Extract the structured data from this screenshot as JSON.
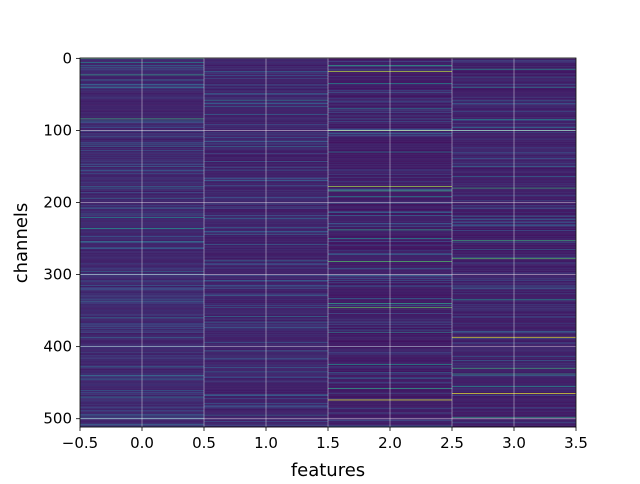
{
  "chart_data": {
    "type": "heatmap",
    "title": "",
    "xlabel": "features",
    "ylabel": "channels",
    "xlim": [
      -0.5,
      3.5
    ],
    "ylim": [
      511.5,
      -0.5
    ],
    "y_inverted": true,
    "grid": true,
    "colormap": "viridis",
    "n_rows": 512,
    "n_cols": 4,
    "x_ticks": [
      -0.5,
      0.0,
      0.5,
      1.0,
      1.5,
      2.0,
      2.5,
      3.0,
      3.5
    ],
    "x_tick_labels": [
      "−0.5",
      "0.0",
      "0.5",
      "1.0",
      "1.5",
      "2.0",
      "2.5",
      "3.0",
      "3.5"
    ],
    "y_ticks": [
      0,
      100,
      200,
      300,
      400,
      500
    ],
    "y_tick_labels": [
      "0",
      "100",
      "200",
      "300",
      "400",
      "500"
    ],
    "columns": [
      {
        "feature": 0,
        "baseline": 0.08,
        "highlights": [
          {
            "channel": 0,
            "value": 0.65
          },
          {
            "channel": 6,
            "value": 0.45
          },
          {
            "channel": 23,
            "value": 0.55
          },
          {
            "channel": 40,
            "value": 0.35
          },
          {
            "channel": 84,
            "value": 0.6
          },
          {
            "channel": 87,
            "value": 0.4
          },
          {
            "channel": 150,
            "value": 0.3
          },
          {
            "channel": 221,
            "value": 0.45
          },
          {
            "channel": 236,
            "value": 0.5
          },
          {
            "channel": 300,
            "value": 0.3
          },
          {
            "channel": 360,
            "value": 0.35
          },
          {
            "channel": 400,
            "value": 0.3
          },
          {
            "channel": 440,
            "value": 0.35
          },
          {
            "channel": 470,
            "value": 0.35
          },
          {
            "channel": 500,
            "value": 0.3
          }
        ]
      },
      {
        "feature": 1,
        "baseline": 0.07,
        "highlights": [
          {
            "channel": 58,
            "value": 0.4
          },
          {
            "channel": 170,
            "value": 0.25
          },
          {
            "channel": 235,
            "value": 0.3
          },
          {
            "channel": 285,
            "value": 0.25
          },
          {
            "channel": 358,
            "value": 0.35
          },
          {
            "channel": 495,
            "value": 0.35
          }
        ]
      },
      {
        "feature": 2,
        "baseline": 0.05,
        "highlights": [
          {
            "channel": 10,
            "value": 0.55
          },
          {
            "channel": 18,
            "value": 0.9
          },
          {
            "channel": 35,
            "value": 0.45
          },
          {
            "channel": 70,
            "value": 0.4
          },
          {
            "channel": 100,
            "value": 0.75
          },
          {
            "channel": 130,
            "value": 0.4
          },
          {
            "channel": 178,
            "value": 0.85
          },
          {
            "channel": 184,
            "value": 0.6
          },
          {
            "channel": 192,
            "value": 0.45
          },
          {
            "channel": 238,
            "value": 0.55
          },
          {
            "channel": 250,
            "value": 0.45
          },
          {
            "channel": 282,
            "value": 0.7
          },
          {
            "channel": 340,
            "value": 0.55
          },
          {
            "channel": 346,
            "value": 0.75
          },
          {
            "channel": 380,
            "value": 0.45
          },
          {
            "channel": 425,
            "value": 0.5
          },
          {
            "channel": 458,
            "value": 0.55
          },
          {
            "channel": 474,
            "value": 0.95
          }
        ]
      },
      {
        "feature": 3,
        "baseline": 0.06,
        "highlights": [
          {
            "channel": 15,
            "value": 0.5
          },
          {
            "channel": 40,
            "value": 0.4
          },
          {
            "channel": 85,
            "value": 0.45
          },
          {
            "channel": 100,
            "value": 0.55
          },
          {
            "channel": 180,
            "value": 0.6
          },
          {
            "channel": 253,
            "value": 0.6
          },
          {
            "channel": 278,
            "value": 0.7
          },
          {
            "channel": 335,
            "value": 0.5
          },
          {
            "channel": 387,
            "value": 0.95
          },
          {
            "channel": 430,
            "value": 0.6
          },
          {
            "channel": 438,
            "value": 0.55
          },
          {
            "channel": 455,
            "value": 0.5
          },
          {
            "channel": 465,
            "value": 0.95
          },
          {
            "channel": 498,
            "value": 0.55
          }
        ]
      }
    ]
  }
}
